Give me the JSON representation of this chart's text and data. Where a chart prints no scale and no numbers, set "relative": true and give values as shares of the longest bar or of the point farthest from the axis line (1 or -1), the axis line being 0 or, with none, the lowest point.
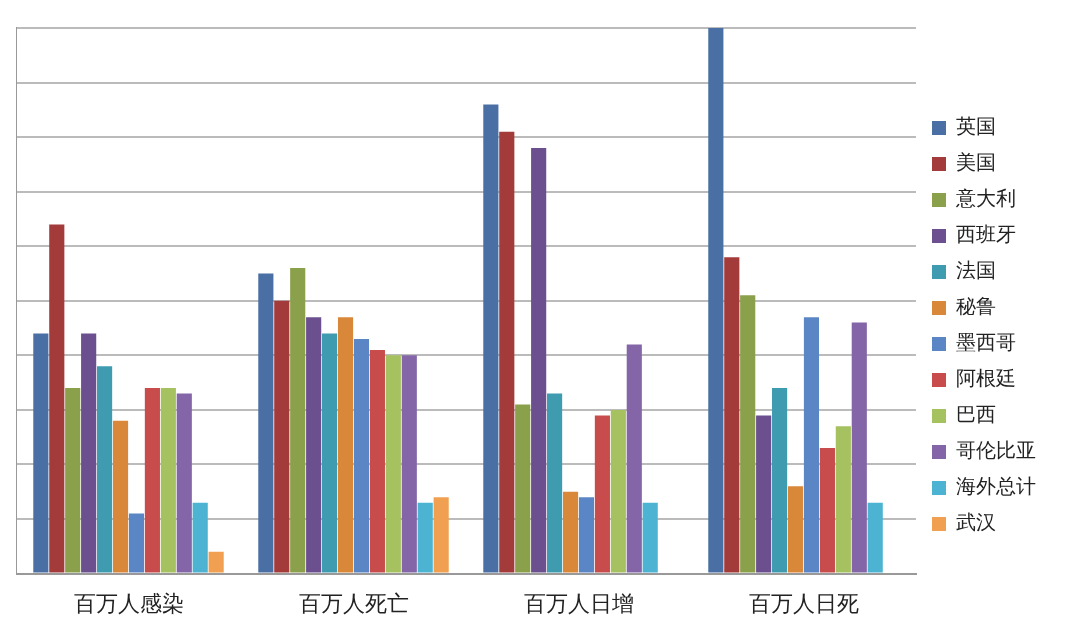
{
  "chart_data": {
    "type": "bar",
    "relative": true,
    "grid": "y",
    "legend": "right",
    "categories": [
      "百万人感染",
      "百万人死亡",
      "百万人日增",
      "百万人日死"
    ],
    "series": [
      {
        "name": "英国",
        "color": "#4a6fa5",
        "values": [
          0.44,
          0.55,
          0.86,
          1
        ]
      },
      {
        "name": "美国",
        "color": "#a33b3b",
        "values": [
          0.64,
          0.5,
          0.81,
          0.58
        ]
      },
      {
        "name": "意大利",
        "color": "#8aa04a",
        "values": [
          0.34,
          0.56,
          0.31,
          0.51
        ]
      },
      {
        "name": "西班牙",
        "color": "#6b4f8f",
        "values": [
          0.44,
          0.47,
          0.78,
          0.29
        ]
      },
      {
        "name": "法国",
        "color": "#3f9bb0",
        "values": [
          0.38,
          0.44,
          0.33,
          0.34
        ]
      },
      {
        "name": "秘鲁",
        "color": "#d9883a",
        "values": [
          0.28,
          0.47,
          0.15,
          0.16
        ]
      },
      {
        "name": "墨西哥",
        "color": "#5b86c5",
        "values": [
          0.11,
          0.43,
          0.14,
          0.47
        ]
      },
      {
        "name": "阿根廷",
        "color": "#c94c4c",
        "values": [
          0.34,
          0.41,
          0.29,
          0.23
        ]
      },
      {
        "name": "巴西",
        "color": "#a6c160",
        "values": [
          0.34,
          0.4,
          0.3,
          0.27
        ]
      },
      {
        "name": "哥伦比亚",
        "color": "#8466a8",
        "values": [
          0.33,
          0.4,
          0.42,
          0.46
        ]
      },
      {
        "name": "海外总计",
        "color": "#4cb3d3",
        "values": [
          0.13,
          0.13,
          0.13,
          0.13
        ]
      },
      {
        "name": "武汉",
        "color": "#f0a050",
        "values": [
          0.04,
          0.14,
          null,
          null
        ]
      }
    ]
  }
}
